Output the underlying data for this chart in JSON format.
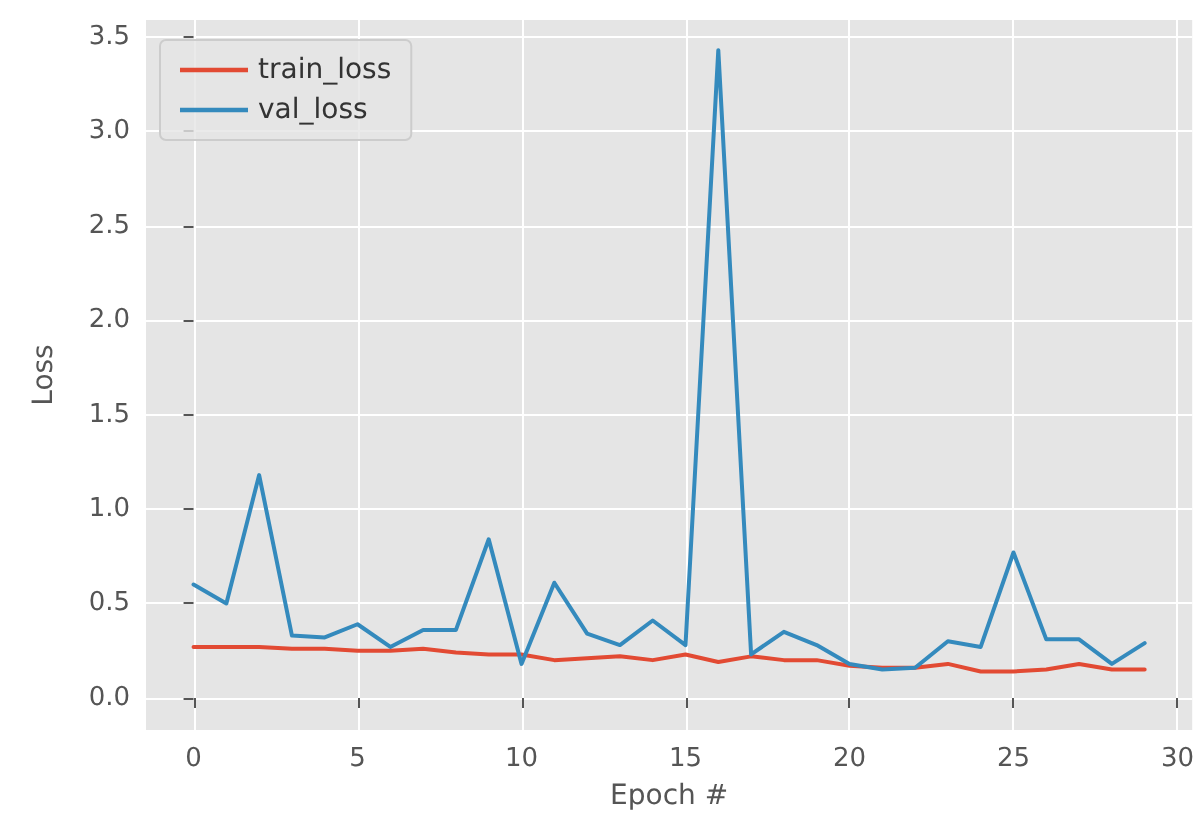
{
  "chart_data": {
    "type": "line",
    "xlabel": "Epoch #",
    "ylabel": "Loss",
    "x": [
      0,
      1,
      2,
      3,
      4,
      5,
      6,
      7,
      8,
      9,
      10,
      11,
      12,
      13,
      14,
      15,
      16,
      17,
      18,
      19,
      20,
      21,
      22,
      23,
      24,
      25,
      26,
      27,
      28,
      29
    ],
    "series": [
      {
        "name": "train_loss",
        "color": "#e24a33",
        "values": [
          0.27,
          0.27,
          0.27,
          0.26,
          0.26,
          0.25,
          0.25,
          0.26,
          0.24,
          0.23,
          0.23,
          0.2,
          0.21,
          0.22,
          0.2,
          0.23,
          0.19,
          0.22,
          0.2,
          0.2,
          0.17,
          0.16,
          0.16,
          0.18,
          0.14,
          0.14,
          0.15,
          0.18,
          0.15,
          0.15
        ]
      },
      {
        "name": "val_loss",
        "color": "#348abd",
        "values": [
          0.6,
          0.5,
          1.18,
          0.33,
          0.32,
          0.39,
          0.27,
          0.36,
          0.36,
          0.84,
          0.18,
          0.61,
          0.34,
          0.28,
          0.41,
          0.28,
          3.43,
          0.23,
          0.35,
          0.28,
          0.18,
          0.15,
          0.16,
          0.3,
          0.27,
          0.77,
          0.31,
          0.31,
          0.18,
          0.29
        ]
      }
    ],
    "xlim": [
      -1.45,
      30.45
    ],
    "xticks": [
      0,
      5,
      10,
      15,
      20,
      25,
      30
    ],
    "ylim": [
      -0.17,
      3.59
    ],
    "yticks": [
      {
        "value": 0,
        "label": "0.0"
      },
      0.5,
      {
        "value": 1,
        "label": "1.0"
      },
      1.5,
      {
        "value": 2,
        "label": "2.0"
      },
      2.5,
      {
        "value": 3,
        "label": "3.0"
      },
      3.5
    ],
    "grid": true,
    "legend": "top left",
    "marker": "none",
    "line_style": "solid"
  }
}
